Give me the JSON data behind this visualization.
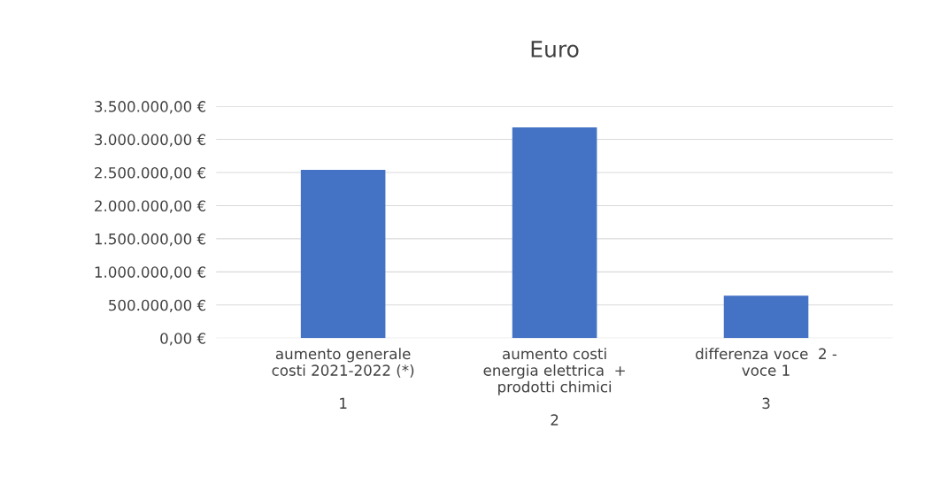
{
  "chart_data": {
    "type": "bar",
    "title": "Euro",
    "categories": [
      "aumento generale\ncosti 2021-2022 (*)\n\n1",
      "aumento costi\nenergia elettrica  +\nprodotti chimici\n\n2",
      "differenza voce  2 -\nvoce 1\n\n3"
    ],
    "values": [
      2540000,
      3180000,
      640000
    ],
    "color": "#4472c4",
    "ylim": [
      0,
      3500000
    ],
    "yticks": [
      {
        "value": 0,
        "label": "0,00 €"
      },
      {
        "value": 500000,
        "label": "500.000,00 €"
      },
      {
        "value": 1000000,
        "label": "1.000.000,00 €"
      },
      {
        "value": 1500000,
        "label": "1.500.000,00 €"
      },
      {
        "value": 2000000,
        "label": "2.000.000,00 €"
      },
      {
        "value": 2500000,
        "label": "2.500.000,00 €"
      },
      {
        "value": 3000000,
        "label": "3.000.000,00 €"
      },
      {
        "value": 3500000,
        "label": "3.500.000,00 €"
      }
    ],
    "grid": "y",
    "legend": false
  }
}
